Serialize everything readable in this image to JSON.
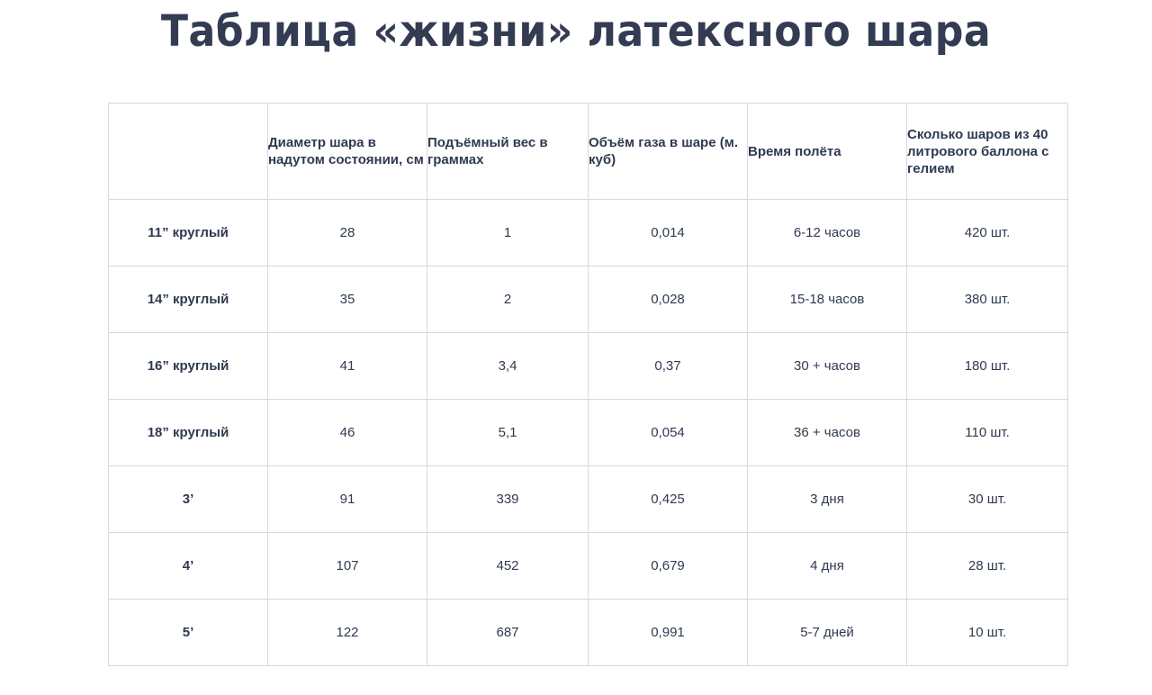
{
  "title": "Таблица «жизни» латексного шара",
  "table": {
    "headers": [
      "",
      "Диаметр шара в надутом состоянии, см",
      "Подъёмный вес в граммах",
      "Объём газа в шаре (м. куб)",
      "Время полёта",
      "Сколько шаров из 40 литрового баллона с гелием"
    ],
    "rows": [
      [
        "11” круглый",
        "28",
        "1",
        "0,014",
        "6-12 часов",
        "420 шт."
      ],
      [
        "14” круглый",
        "35",
        "2",
        "0,028",
        "15-18 часов",
        "380 шт."
      ],
      [
        "16” круглый",
        "41",
        "3,4",
        "0,37",
        "30 + часов",
        "180 шт."
      ],
      [
        "18” круглый",
        "46",
        "5,1",
        "0,054",
        "36 + часов",
        "110 шт."
      ],
      [
        "3’",
        "91",
        "339",
        "0,425",
        "3 дня",
        "30 шт."
      ],
      [
        "4’",
        "107",
        "452",
        "0,679",
        "4 дня",
        "28 шт."
      ],
      [
        "5’",
        "122",
        "687",
        "0,991",
        "5-7 дней",
        "10 шт."
      ]
    ]
  }
}
